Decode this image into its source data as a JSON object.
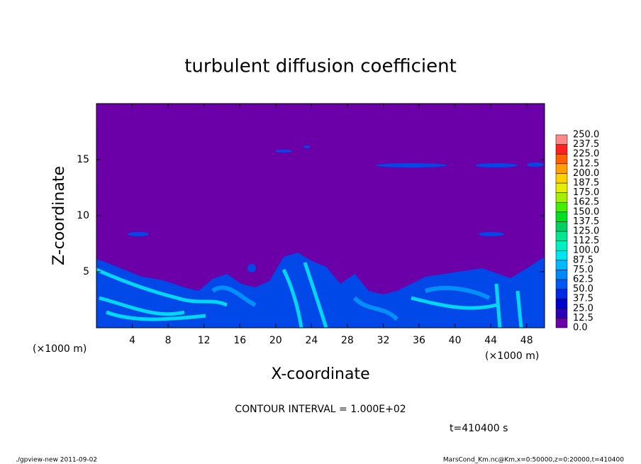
{
  "chart_data": {
    "type": "contour",
    "title": "turbulent diffusion coefficient",
    "xlabel": "X-coordinate",
    "ylabel": "Z-coordinate",
    "x_unit_label": "(×1000 m)",
    "contour_interval": "CONTOUR INTERVAL = 1.000E+02",
    "time_label": "t=410400 s",
    "footer_left": "./gpview-new   2011-09-02",
    "footer_right": "MarsCond_Km.nc@Km,x=0:50000,z=0:20000,t=410400",
    "xlim": [
      0,
      50
    ],
    "ylim": [
      0,
      20
    ],
    "xticks": [
      4,
      8,
      12,
      16,
      20,
      24,
      28,
      32,
      36,
      40,
      44,
      48
    ],
    "yticks": [
      5,
      10,
      15
    ],
    "colorbar": {
      "levels": [
        {
          "value": 0,
          "label": "0.0"
        },
        {
          "value": 12.5,
          "label": "12.5"
        },
        {
          "value": 25,
          "label": "25.0"
        },
        {
          "value": 37.5,
          "label": "37.5"
        },
        {
          "value": 50,
          "label": "50.0"
        },
        {
          "value": 62.5,
          "label": "62.5"
        },
        {
          "value": 75,
          "label": "75.0"
        },
        {
          "value": 87.5,
          "label": "87.5"
        },
        {
          "value": 100,
          "label": "100.0"
        },
        {
          "value": 112.5,
          "label": "112.5"
        },
        {
          "value": 125,
          "label": "125.0"
        },
        {
          "value": 137.5,
          "label": "137.5"
        },
        {
          "value": 150,
          "label": "150.0"
        },
        {
          "value": 162.5,
          "label": "162.5"
        },
        {
          "value": 175,
          "label": "175.0"
        },
        {
          "value": 187.5,
          "label": "187.5"
        },
        {
          "value": 200,
          "label": "200.0"
        },
        {
          "value": 212.5,
          "label": "212.5"
        },
        {
          "value": 225,
          "label": "225.0"
        },
        {
          "value": 237.5,
          "label": "237.5"
        },
        {
          "value": 250,
          "label": "250.0"
        }
      ],
      "colors": [
        "#6c00a8",
        "#2c00b4",
        "#0000cc",
        "#0028e4",
        "#0058f4",
        "#0088fa",
        "#00b8ff",
        "#00e4f4",
        "#00f0c4",
        "#00e894",
        "#00d060",
        "#00e020",
        "#44f000",
        "#a4f000",
        "#e4f000",
        "#ffd000",
        "#ffa000",
        "#ff6000",
        "#ff2020",
        "#ff8888"
      ]
    }
  }
}
